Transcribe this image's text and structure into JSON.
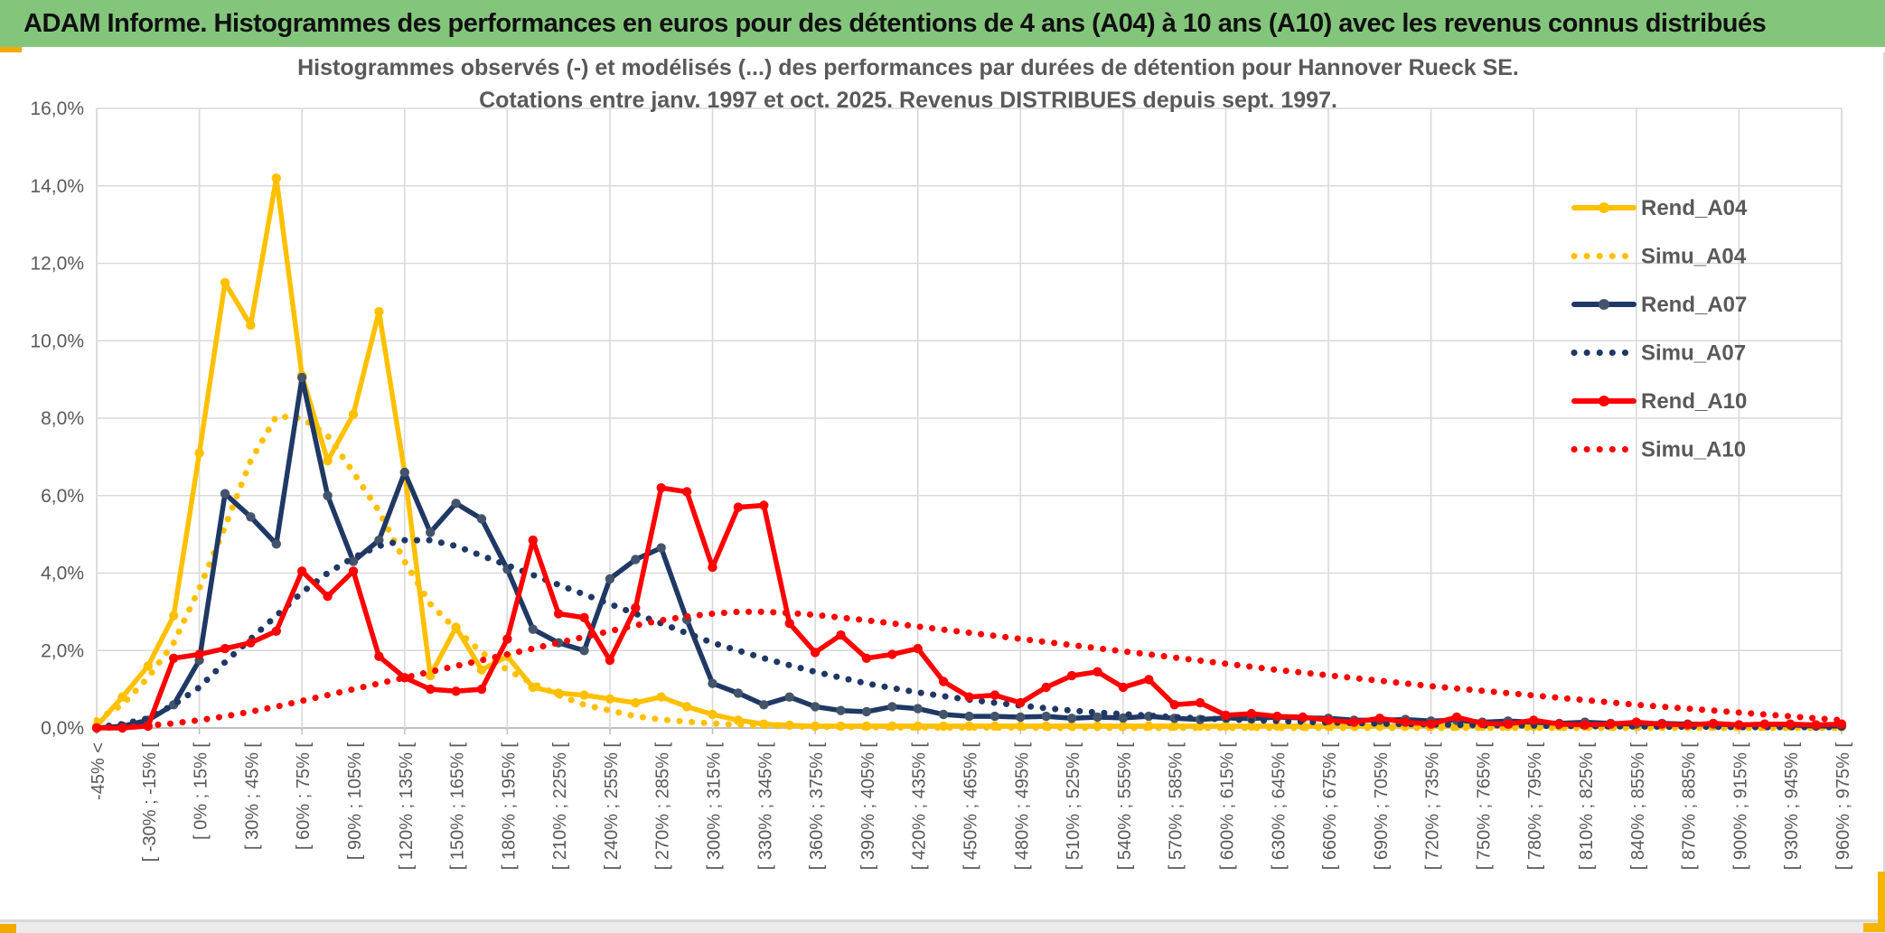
{
  "header": {
    "title": "ADAM Informe. Histogrammes des performances en euros pour des détentions de 4 ans (A04) à 10 ans (A10) avec les revenus connus distribués",
    "bg_color": "#84C57C",
    "accent_color": "#F2A900"
  },
  "chart": {
    "title_line1": "Histogrammes observés (-) et modélisés (...) des performances par durées de détention pour Hannover Rueck SE.",
    "title_line2": "Cotations entre janv. 1997 et oct. 2025. Revenus DISTRIBUES depuis sept. 1997."
  },
  "chart_data": {
    "type": "line",
    "title": "Histogrammes observés (-) et modélisés (...) des performances par durées de détention pour Hannover Rueck SE. Cotations entre janv. 1997 et oct. 2025. Revenus DISTRIBUES depuis sept. 1997.",
    "xlabel": "",
    "ylabel": "",
    "ylim": [
      0,
      16
    ],
    "grid": true,
    "legend_position": "right-inside",
    "y_tick_labels": [
      "0,0%",
      "2,0%",
      "4,0%",
      "6,0%",
      "8,0%",
      "10,0%",
      "12,0%",
      "14,0%",
      "16,0%"
    ],
    "x_label_every": 2,
    "n_points": 69,
    "x_tick_labels": [
      "-45% <",
      "[ -30% ; -15% [",
      "[ 0% ; 15% [",
      "[ 30% ; 45% [",
      "[ 60% ; 75% [",
      "[ 90% ; 105% [",
      "[ 120% ; 135% [",
      "[ 150% ; 165% [",
      "[ 180% ; 195% [",
      "[ 210% ; 225% [",
      "[ 240% ; 255% [",
      "[ 270% ; 285% [",
      "[ 300% ; 315% [",
      "[ 330% ; 345% [",
      "[ 360% ; 375% [",
      "[ 390% ; 405% [",
      "[ 420% ; 435% [",
      "[ 450% ; 465% [",
      "[ 480% ; 495% [",
      "[ 510% ; 525% [",
      "[ 540% ; 555% [",
      "[ 570% ; 585% [",
      "[ 600% ; 615% [",
      "[ 630% ; 645% [",
      "[ 660% ; 675% [",
      "[ 690% ; 705% [",
      "[ 720% ; 735% [",
      "[ 750% ; 765% [",
      "[ 780% ; 795% [",
      "[ 810% ; 825% [",
      "[ 840% ; 855% [",
      "[ 870% ; 885% [",
      "[ 900% ; 915% [",
      "[ 930% ; 945% [",
      "[ 960% ; 975% ["
    ],
    "series": [
      {
        "name": "Rend_A04",
        "color": "#FFC000",
        "style": "solid",
        "marker": true,
        "values": [
          0.05,
          0.8,
          1.6,
          2.9,
          7.1,
          11.5,
          10.4,
          14.2,
          9.1,
          6.9,
          8.1,
          10.75,
          6.6,
          1.35,
          2.6,
          1.5,
          1.85,
          1.05,
          0.9,
          0.85,
          0.75,
          0.65,
          0.8,
          0.55,
          0.35,
          0.2,
          0.1,
          0.07,
          0.05,
          0.05,
          0.05,
          0.05,
          0.05,
          0.05,
          0.05,
          0.05,
          0.05,
          0.05,
          0.05,
          0.05,
          0.05,
          0.05,
          0.05,
          0.05,
          0.05,
          0.05,
          0.05,
          0.05,
          0.05,
          0.05,
          0.05,
          0.05,
          0.05,
          0.05,
          0.05,
          0.05,
          0.05,
          0.05,
          0.05,
          0.05,
          0.05,
          0.05,
          0.05,
          0.05,
          0.05,
          0.05,
          0.05,
          0.05,
          0.03
        ]
      },
      {
        "name": "Simu_A04",
        "color": "#FFC000",
        "style": "dotted",
        "marker": false,
        "values": [
          0.2,
          0.6,
          1.3,
          2.2,
          3.6,
          5.2,
          6.9,
          8.05,
          8.0,
          7.55,
          6.6,
          5.6,
          4.3,
          3.2,
          2.55,
          1.95,
          1.5,
          1.15,
          0.85,
          0.6,
          0.45,
          0.3,
          0.22,
          0.16,
          0.12,
          0.08,
          0.06,
          0.04,
          0.03,
          0.02,
          0.02,
          0.01,
          0.01,
          0.01,
          0.01,
          0.01,
          0.01,
          0,
          0,
          0,
          0,
          0,
          0,
          0,
          0,
          0,
          0,
          0,
          0,
          0,
          0,
          0,
          0,
          0,
          0,
          0,
          0,
          0,
          0,
          0,
          0,
          0,
          0,
          0,
          0,
          0,
          0,
          0,
          0
        ]
      },
      {
        "name": "Rend_A07",
        "color": "#1F3864",
        "marker_color": "#44546A",
        "style": "solid",
        "marker": true,
        "values": [
          0,
          0.05,
          0.2,
          0.6,
          1.75,
          6.05,
          5.45,
          4.75,
          9.05,
          6.0,
          4.3,
          4.85,
          6.6,
          5.05,
          5.8,
          5.4,
          4.1,
          2.55,
          2.2,
          2.0,
          3.85,
          4.35,
          4.65,
          2.8,
          1.15,
          0.9,
          0.6,
          0.8,
          0.55,
          0.45,
          0.42,
          0.55,
          0.5,
          0.35,
          0.3,
          0.3,
          0.28,
          0.3,
          0.25,
          0.28,
          0.26,
          0.3,
          0.25,
          0.22,
          0.26,
          0.24,
          0.28,
          0.26,
          0.25,
          0.2,
          0.2,
          0.22,
          0.18,
          0.2,
          0.15,
          0.18,
          0.15,
          0.12,
          0.15,
          0.12,
          0.1,
          0.12,
          0.1,
          0.1,
          0.08,
          0.1,
          0.08,
          0.05,
          0.05
        ]
      },
      {
        "name": "Simu_A07",
        "color": "#1F3864",
        "style": "dotted",
        "marker": false,
        "values": [
          0.02,
          0.1,
          0.25,
          0.6,
          1.05,
          1.7,
          2.3,
          2.9,
          3.5,
          4.0,
          4.4,
          4.7,
          4.85,
          4.85,
          4.7,
          4.45,
          4.2,
          3.95,
          3.7,
          3.45,
          3.2,
          2.95,
          2.7,
          2.45,
          2.2,
          2.0,
          1.8,
          1.62,
          1.45,
          1.3,
          1.15,
          1.03,
          0.92,
          0.82,
          0.73,
          0.65,
          0.58,
          0.51,
          0.45,
          0.4,
          0.36,
          0.32,
          0.28,
          0.25,
          0.22,
          0.2,
          0.18,
          0.16,
          0.14,
          0.13,
          0.11,
          0.1,
          0.09,
          0.08,
          0.07,
          0.07,
          0.06,
          0.05,
          0.05,
          0.04,
          0.04,
          0.03,
          0.03,
          0.03,
          0.02,
          0.02,
          0.02,
          0.02,
          0.02
        ]
      },
      {
        "name": "Rend_A10",
        "color": "#FF0000",
        "style": "solid",
        "marker": true,
        "values": [
          0,
          0,
          0.05,
          1.8,
          1.9,
          2.05,
          2.2,
          2.5,
          4.05,
          3.4,
          4.05,
          1.85,
          1.3,
          1.0,
          0.95,
          1.0,
          2.3,
          4.85,
          2.95,
          2.85,
          1.75,
          3.1,
          6.2,
          6.1,
          4.15,
          5.7,
          5.75,
          2.7,
          1.95,
          2.4,
          1.8,
          1.9,
          2.05,
          1.2,
          0.8,
          0.85,
          0.65,
          1.05,
          1.35,
          1.45,
          1.05,
          1.25,
          0.6,
          0.65,
          0.33,
          0.37,
          0.3,
          0.28,
          0.2,
          0.15,
          0.25,
          0.15,
          0.1,
          0.28,
          0.12,
          0.1,
          0.2,
          0.1,
          0.08,
          0.1,
          0.15,
          0.1,
          0.08,
          0.12,
          0.08,
          0.1,
          0.1,
          0.08,
          0.1
        ]
      },
      {
        "name": "Simu_A10",
        "color": "#FF0000",
        "style": "dotted",
        "marker": false,
        "values": [
          0,
          0.02,
          0.06,
          0.12,
          0.2,
          0.3,
          0.42,
          0.55,
          0.7,
          0.85,
          1.0,
          1.15,
          1.3,
          1.45,
          1.6,
          1.75,
          1.9,
          2.05,
          2.2,
          2.35,
          2.5,
          2.65,
          2.78,
          2.88,
          2.95,
          3.0,
          3.0,
          2.97,
          2.92,
          2.85,
          2.78,
          2.7,
          2.62,
          2.54,
          2.46,
          2.38,
          2.3,
          2.22,
          2.14,
          2.06,
          1.98,
          1.9,
          1.82,
          1.74,
          1.66,
          1.58,
          1.5,
          1.43,
          1.36,
          1.29,
          1.22,
          1.15,
          1.08,
          1.02,
          0.96,
          0.9,
          0.84,
          0.78,
          0.72,
          0.66,
          0.6,
          0.55,
          0.5,
          0.45,
          0.4,
          0.35,
          0.3,
          0.25,
          0.2
        ]
      }
    ],
    "colors": {
      "gold": "#FFC000",
      "navy": "#1F3864",
      "navy_marker": "#44546A",
      "red": "#FF0000",
      "gridline": "#D9D9D9",
      "axis": "#BFBFBF",
      "label": "#595959"
    }
  }
}
